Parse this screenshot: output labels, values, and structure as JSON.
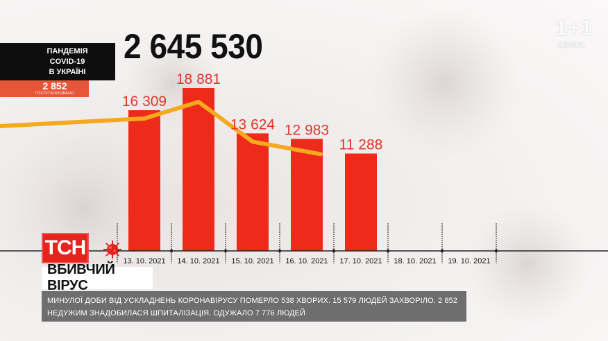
{
  "brand": {
    "watermark": "1+1",
    "watermark_sub": "УКРАЇНА"
  },
  "header": {
    "total_cases": "2 645 530",
    "pandemic_label": [
      "ПАНДЕМІЯ",
      "COVID-19",
      "В УКРАЇНІ"
    ],
    "hospitalized_value": "2 852",
    "hospitalized_label": "ГОСПІТАЛІЗОВАНО"
  },
  "logo": {
    "text": "ТСН"
  },
  "headline": "ВБИВЧИЙ ВІРУС",
  "ticker": "МИНУЛОЇ ДОБИ ВІД УСКЛАДНЕНЬ КОРОНАВІРУСУ ПОМЕРЛО 538 ХВОРИХ. 15 579 ЛЮДЕЙ ЗАХВОРІЛО. 2 852 НЕДУЖИМ ЗНАДОБИЛАСЯ ШПИТАЛІЗАЦІЯ. ОДУЖАЛО 7 776 ЛЮДЕЙ",
  "colors": {
    "bar": "#ee2a1b",
    "label": "#e03628",
    "trend_line": "#f5a91e",
    "axis": "#222222",
    "ticker_bg": "#6e6e6e",
    "logo_bg": "#e8231e"
  },
  "chart_data": {
    "type": "bar",
    "categories": [
      "13. 10. 2021",
      "14. 10. 2021",
      "15. 10. 2021",
      "16. 10. 2021",
      "17. 10. 2021",
      "18. 10. 2021",
      "19. 10. 2021"
    ],
    "values": [
      16309,
      18881,
      13624,
      12983,
      11288,
      null,
      null
    ],
    "value_labels": [
      "16 309",
      "18 881",
      "13 624",
      "12 983",
      "11 288",
      "",
      ""
    ],
    "trend_line": {
      "type": "line",
      "values": [
        16309,
        18881,
        13624,
        12983
      ]
    },
    "title": "",
    "xlabel": "",
    "ylabel": "",
    "grid": false,
    "legend": "none"
  }
}
